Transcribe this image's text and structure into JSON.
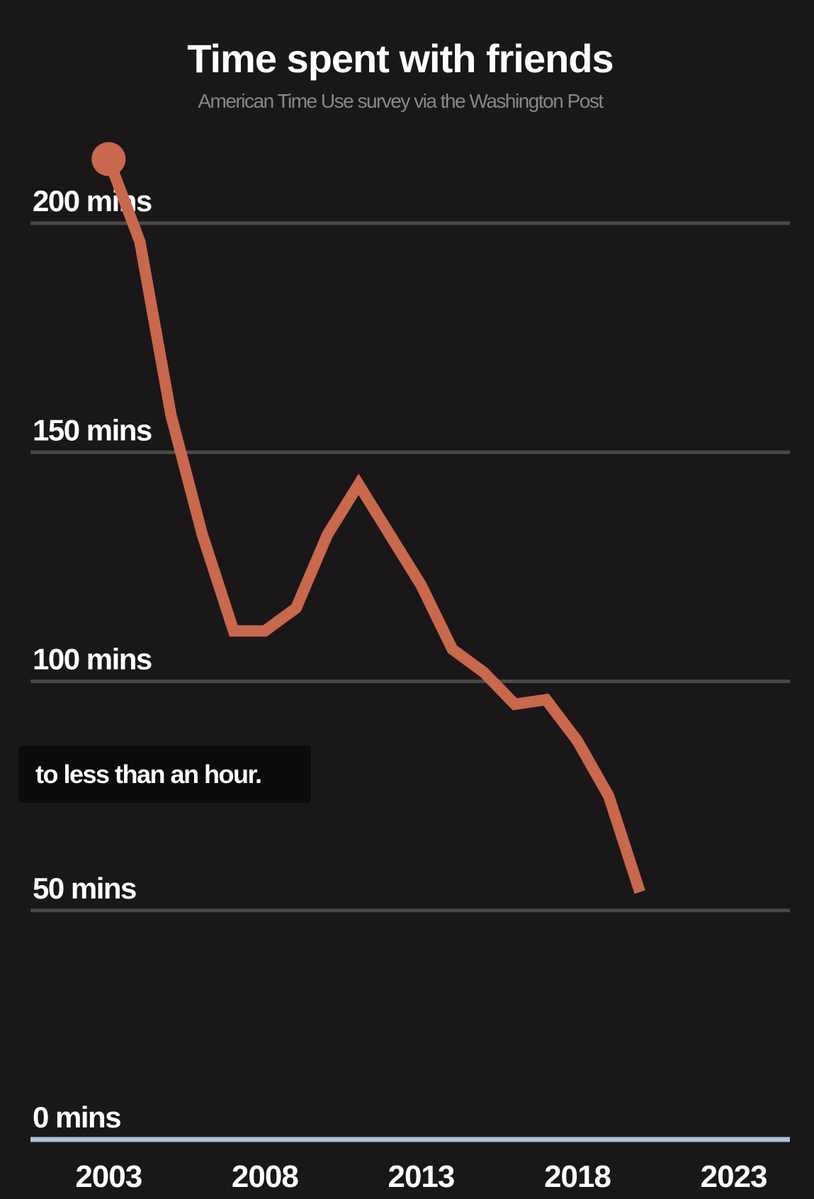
{
  "chart_data": {
    "type": "line",
    "title": "Time spent with friends",
    "subtitle": "American Time Use survey via the Washington Post",
    "annotation": "to less than an hour.",
    "x": [
      2003,
      2004,
      2005,
      2006,
      2007,
      2008,
      2009,
      2010,
      2011,
      2012,
      2013,
      2014,
      2015,
      2016,
      2017,
      2018,
      2019,
      2020
    ],
    "series": [
      {
        "name": "Time spent with friends",
        "color": "#c8684c",
        "values": [
          214,
          196,
          158,
          132,
          111,
          111,
          116,
          132,
          143,
          132,
          121,
          107,
          102,
          95,
          96,
          87,
          75,
          54
        ]
      }
    ],
    "xlim": [
      2000.5,
      2024.8
    ],
    "xticks": [
      2003,
      2008,
      2013,
      2018,
      2023
    ],
    "ylim": [
      0,
      200
    ],
    "yticks": [
      {
        "value": 0,
        "label": "0 mins"
      },
      {
        "value": 50,
        "label": "50 mins"
      },
      {
        "value": 100,
        "label": "100 mins"
      },
      {
        "value": 150,
        "label": "150 mins"
      },
      {
        "value": 200,
        "label": "200 mins"
      }
    ],
    "grid": true
  }
}
